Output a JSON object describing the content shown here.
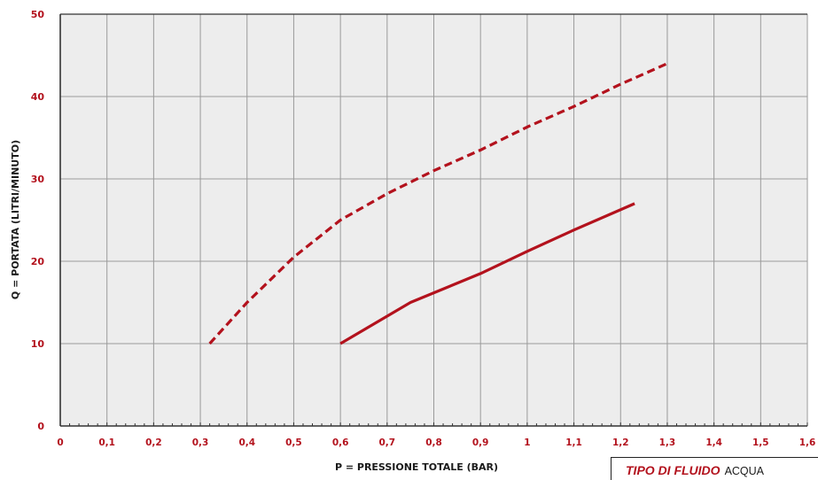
{
  "chart_data": {
    "type": "line",
    "xlabel": "P = PRESSIONE TOTALE (BAR)",
    "ylabel": "Q = PORTATA (LITRI/MINUTO)",
    "xlim": [
      0,
      1.6
    ],
    "ylim": [
      0,
      50
    ],
    "x_ticks": [
      0,
      0.1,
      0.2,
      0.3,
      0.4,
      0.5,
      0.6,
      0.7,
      0.8,
      0.9,
      1.0,
      1.1,
      1.2,
      1.3,
      1.4,
      1.5,
      1.6
    ],
    "x_tick_labels": [
      "0",
      "0,1",
      "0,2",
      "0,3",
      "0,4",
      "0,5",
      "0,6",
      "0,7",
      "0,8",
      "0,9",
      "1",
      "1,1",
      "1,2",
      "1,3",
      "1,4",
      "1,5",
      "1,6"
    ],
    "y_ticks": [
      0,
      10,
      20,
      30,
      40,
      50
    ],
    "y_tick_labels": [
      "0",
      "10",
      "20",
      "30",
      "40",
      "50"
    ],
    "grid": true,
    "series": [
      {
        "style": "dashed",
        "color": "#b3121d",
        "x": [
          0.32,
          0.4,
          0.5,
          0.6,
          0.7,
          0.8,
          0.9,
          1.0,
          1.1,
          1.2,
          1.3
        ],
        "y": [
          10,
          15,
          20.5,
          25,
          28.2,
          31,
          33.5,
          36.3,
          38.8,
          41.5,
          44
        ]
      },
      {
        "style": "solid",
        "color": "#b3121d",
        "x": [
          0.6,
          0.75,
          0.9,
          1.0,
          1.1,
          1.23
        ],
        "y": [
          10,
          15,
          18.5,
          21.2,
          23.8,
          27
        ]
      }
    ]
  },
  "legend_box": {
    "key": "TIPO DI FLUIDO",
    "value": "ACQUA"
  }
}
